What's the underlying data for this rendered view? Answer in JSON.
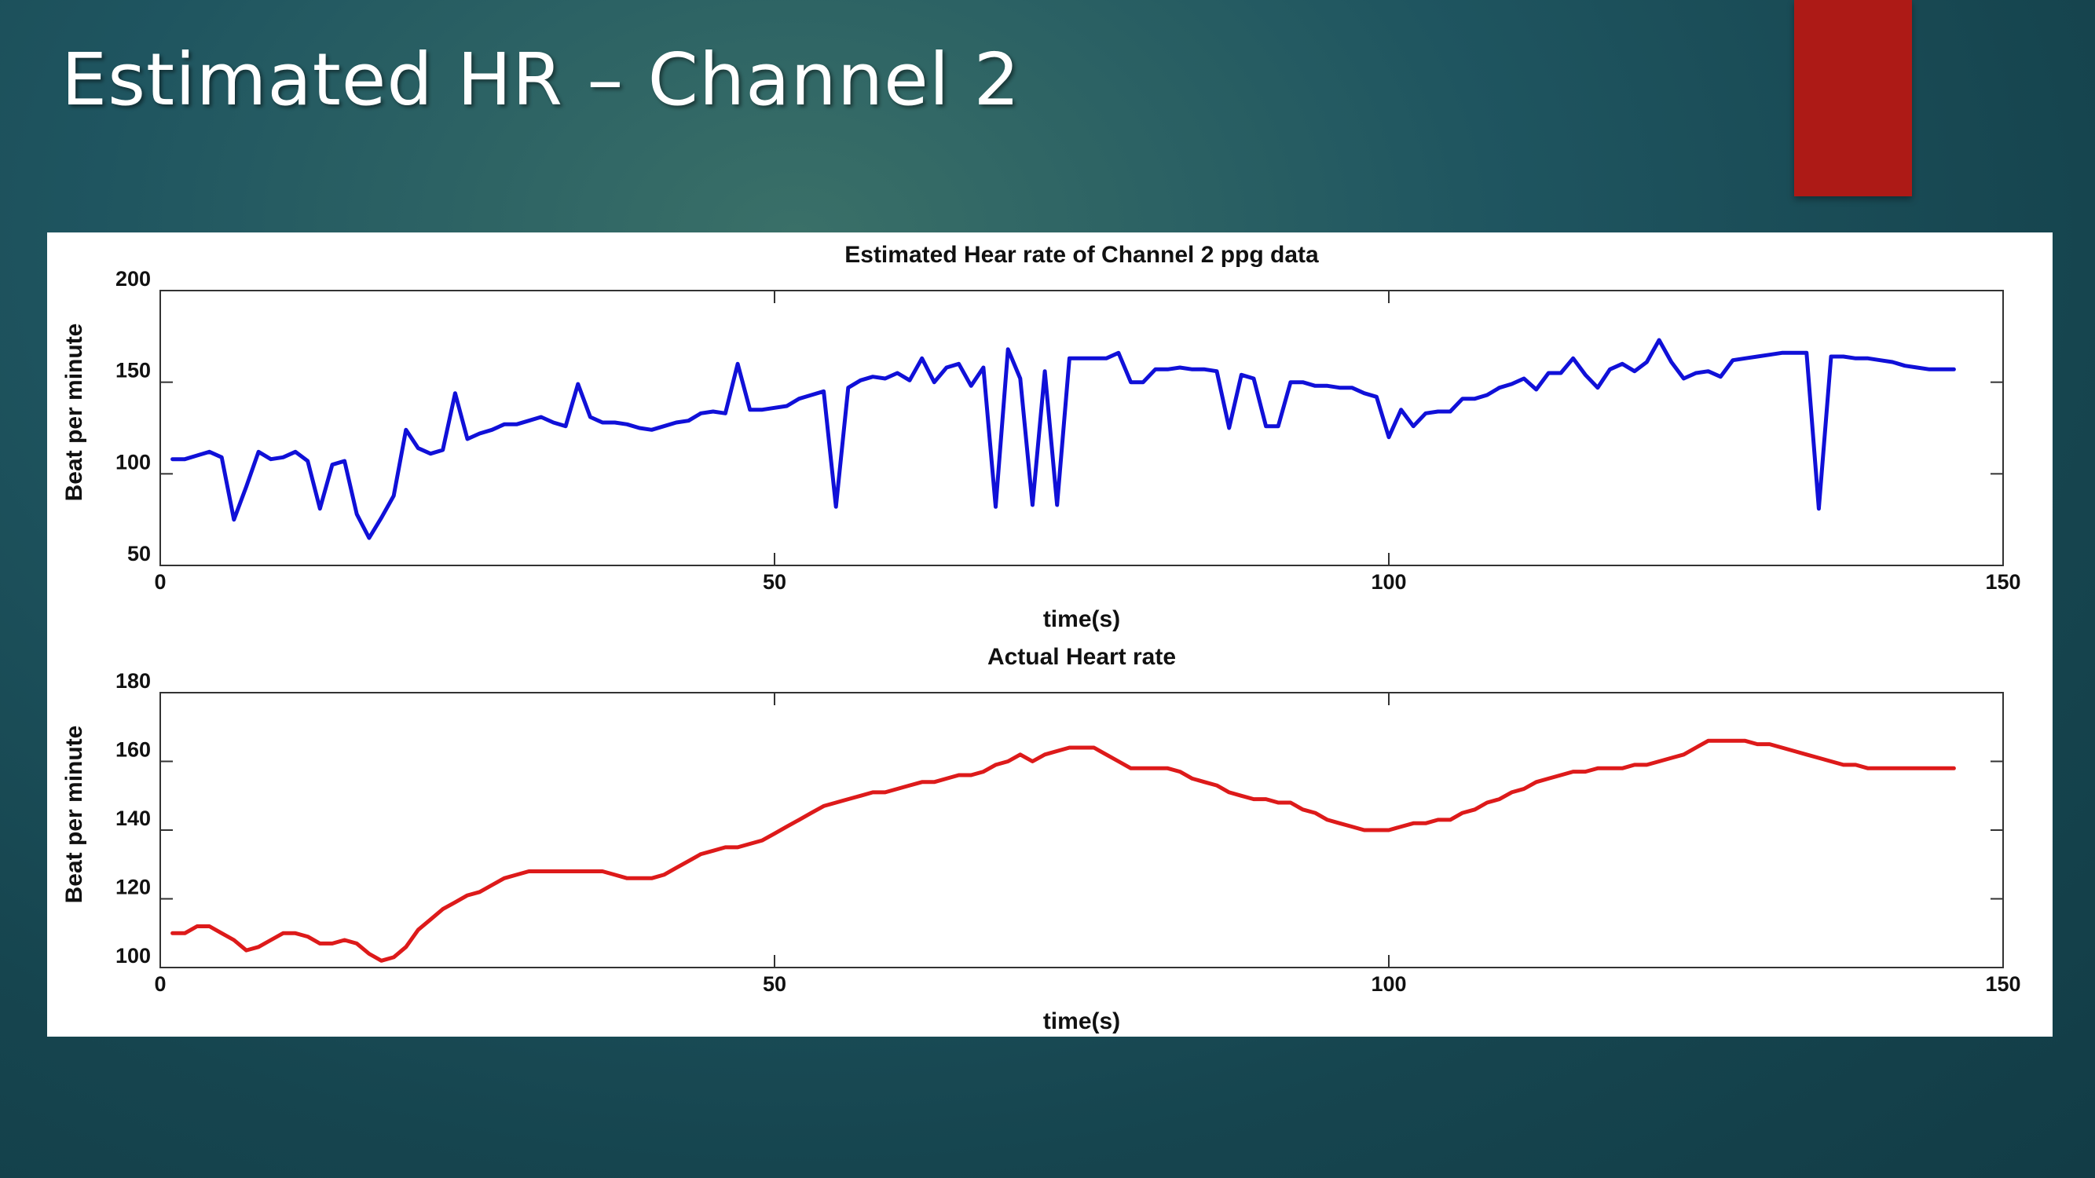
{
  "slide": {
    "title": "Estimated HR – Channel 2",
    "accent_color": "#ad1a16"
  },
  "chart_data": [
    {
      "type": "line",
      "title": "Estimated Hear rate of Channel 2 ppg data",
      "xlabel": "time(s)",
      "ylabel": "Beat per minute",
      "xlim": [
        0,
        150
      ],
      "ylim": [
        50,
        200
      ],
      "xticks": [
        0,
        50,
        100,
        150
      ],
      "yticks": [
        50,
        100,
        150,
        200
      ],
      "grid": false,
      "series": [
        {
          "color": "#1010d8",
          "x": [
            1,
            2,
            3,
            4,
            5,
            6,
            7,
            8,
            9,
            10,
            11,
            12,
            13,
            14,
            15,
            16,
            17,
            18,
            19,
            20,
            21,
            22,
            23,
            24,
            25,
            26,
            27,
            28,
            29,
            30,
            31,
            32,
            33,
            34,
            35,
            36,
            37,
            38,
            39,
            40,
            41,
            42,
            43,
            44,
            45,
            46,
            47,
            48,
            49,
            50,
            51,
            52,
            53,
            54,
            55,
            56,
            57,
            58,
            59,
            60,
            61,
            62,
            63,
            64,
            65,
            66,
            67,
            68,
            69,
            70,
            71,
            72,
            73,
            74,
            75,
            76,
            77,
            78,
            79,
            80,
            81,
            82,
            83,
            84,
            85,
            86,
            87,
            88,
            89,
            90,
            91,
            92,
            93,
            94,
            95,
            96,
            97,
            98,
            99,
            100,
            101,
            102,
            103,
            104,
            105,
            106,
            107,
            108,
            109,
            110,
            111,
            112,
            113,
            114,
            115,
            116,
            117,
            118,
            119,
            120,
            121,
            122,
            123,
            124,
            125,
            126,
            127,
            128,
            129,
            130,
            131,
            132,
            133,
            134,
            135,
            136,
            137,
            138,
            139,
            140,
            141,
            142,
            143,
            144,
            145,
            146
          ],
          "y": [
            108,
            108,
            110,
            112,
            109,
            75,
            93,
            112,
            108,
            109,
            112,
            107,
            81,
            105,
            107,
            78,
            65,
            76,
            88,
            124,
            114,
            111,
            113,
            144,
            119,
            122,
            124,
            127,
            127,
            129,
            131,
            128,
            126,
            149,
            131,
            128,
            128,
            127,
            125,
            124,
            126,
            128,
            129,
            133,
            134,
            133,
            160,
            135,
            135,
            136,
            137,
            141,
            143,
            145,
            82,
            147,
            151,
            153,
            152,
            155,
            151,
            163,
            150,
            158,
            160,
            148,
            158,
            82,
            168,
            152,
            83,
            156,
            83,
            163,
            163,
            163,
            163,
            166,
            150,
            150,
            157,
            157,
            158,
            157,
            157,
            156,
            125,
            154,
            152,
            126,
            126,
            150,
            150,
            148,
            148,
            147,
            147,
            144,
            142,
            120,
            135,
            126,
            133,
            134,
            134,
            141,
            141,
            143,
            147,
            149,
            152,
            146,
            155,
            155,
            163,
            154,
            147,
            157,
            160,
            156,
            161,
            173,
            161,
            152,
            155,
            156,
            153,
            162,
            163,
            164,
            165,
            166,
            166,
            166,
            81,
            164,
            164,
            163,
            163,
            162,
            161,
            159,
            158,
            157,
            157,
            157
          ]
        }
      ]
    },
    {
      "type": "line",
      "title": "Actual Heart rate",
      "xlabel": "time(s)",
      "ylabel": "Beat per minute",
      "xlim": [
        0,
        150
      ],
      "ylim": [
        100,
        180
      ],
      "xticks": [
        0,
        50,
        100,
        150
      ],
      "yticks": [
        100,
        120,
        140,
        160,
        180
      ],
      "grid": false,
      "series": [
        {
          "color": "#dd1a1a",
          "x": [
            1,
            2,
            3,
            4,
            5,
            6,
            7,
            8,
            9,
            10,
            11,
            12,
            13,
            14,
            15,
            16,
            17,
            18,
            19,
            20,
            21,
            22,
            23,
            24,
            25,
            26,
            27,
            28,
            29,
            30,
            31,
            32,
            33,
            34,
            35,
            36,
            37,
            38,
            39,
            40,
            41,
            42,
            43,
            44,
            45,
            46,
            47,
            48,
            49,
            50,
            51,
            52,
            53,
            54,
            55,
            56,
            57,
            58,
            59,
            60,
            61,
            62,
            63,
            64,
            65,
            66,
            67,
            68,
            69,
            70,
            71,
            72,
            73,
            74,
            75,
            76,
            77,
            78,
            79,
            80,
            81,
            82,
            83,
            84,
            85,
            86,
            87,
            88,
            89,
            90,
            91,
            92,
            93,
            94,
            95,
            96,
            97,
            98,
            99,
            100,
            101,
            102,
            103,
            104,
            105,
            106,
            107,
            108,
            109,
            110,
            111,
            112,
            113,
            114,
            115,
            116,
            117,
            118,
            119,
            120,
            121,
            122,
            123,
            124,
            125,
            126,
            127,
            128,
            129,
            130,
            131,
            132,
            133,
            134,
            135,
            136,
            137,
            138,
            139,
            140,
            141,
            142,
            143,
            144,
            145,
            146
          ],
          "y": [
            110,
            110,
            112,
            112,
            110,
            108,
            105,
            106,
            108,
            110,
            110,
            109,
            107,
            107,
            108,
            107,
            104,
            102,
            103,
            106,
            111,
            114,
            117,
            119,
            121,
            122,
            124,
            126,
            127,
            128,
            128,
            128,
            128,
            128,
            128,
            128,
            127,
            126,
            126,
            126,
            127,
            129,
            131,
            133,
            134,
            135,
            135,
            136,
            137,
            139,
            141,
            143,
            145,
            147,
            148,
            149,
            150,
            151,
            151,
            152,
            153,
            154,
            154,
            155,
            156,
            156,
            157,
            159,
            160,
            162,
            160,
            162,
            163,
            164,
            164,
            164,
            162,
            160,
            158,
            158,
            158,
            158,
            157,
            155,
            154,
            153,
            151,
            150,
            149,
            149,
            148,
            148,
            146,
            145,
            143,
            142,
            141,
            140,
            140,
            140,
            141,
            142,
            142,
            143,
            143,
            145,
            146,
            148,
            149,
            151,
            152,
            154,
            155,
            156,
            157,
            157,
            158,
            158,
            158,
            159,
            159,
            160,
            161,
            162,
            164,
            166,
            166,
            166,
            166,
            165,
            165,
            164,
            163,
            162,
            161,
            160,
            159,
            159,
            158,
            158,
            158,
            158,
            158,
            158,
            158,
            158
          ]
        }
      ]
    }
  ]
}
